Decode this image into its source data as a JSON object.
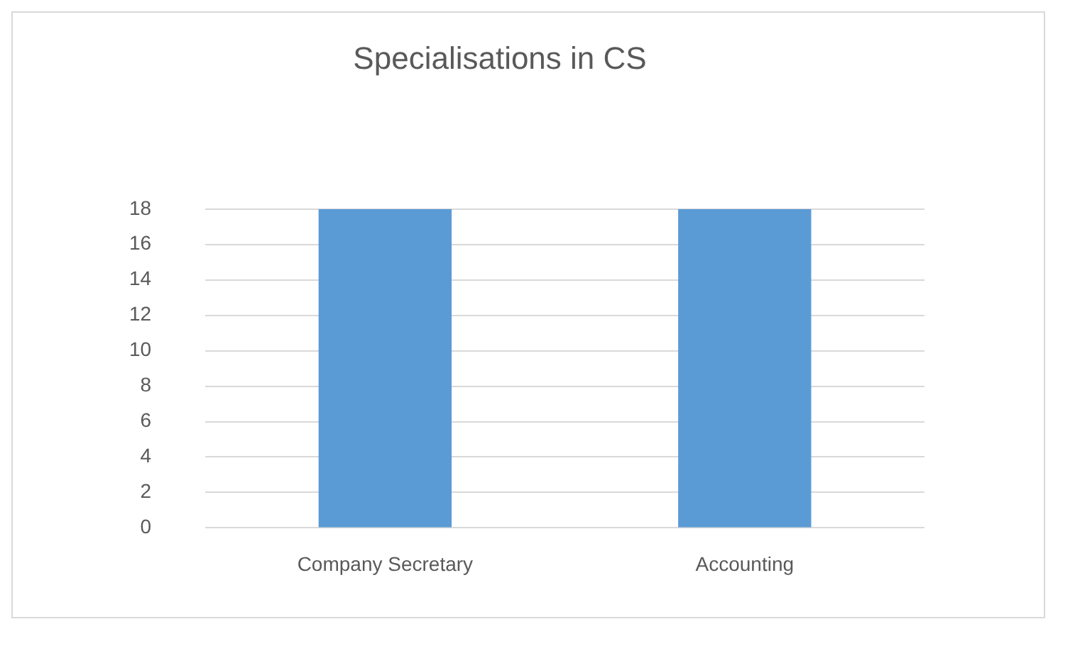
{
  "chart_data": {
    "type": "bar",
    "title": "Specialisations in CS",
    "categories": [
      "Company Secretary",
      "Accounting"
    ],
    "values": [
      18,
      18
    ],
    "color": "#5b9bd5",
    "ylim": [
      0,
      18
    ],
    "yticks": [
      0,
      2,
      4,
      6,
      8,
      10,
      12,
      14,
      16,
      18
    ],
    "grid": "y"
  }
}
